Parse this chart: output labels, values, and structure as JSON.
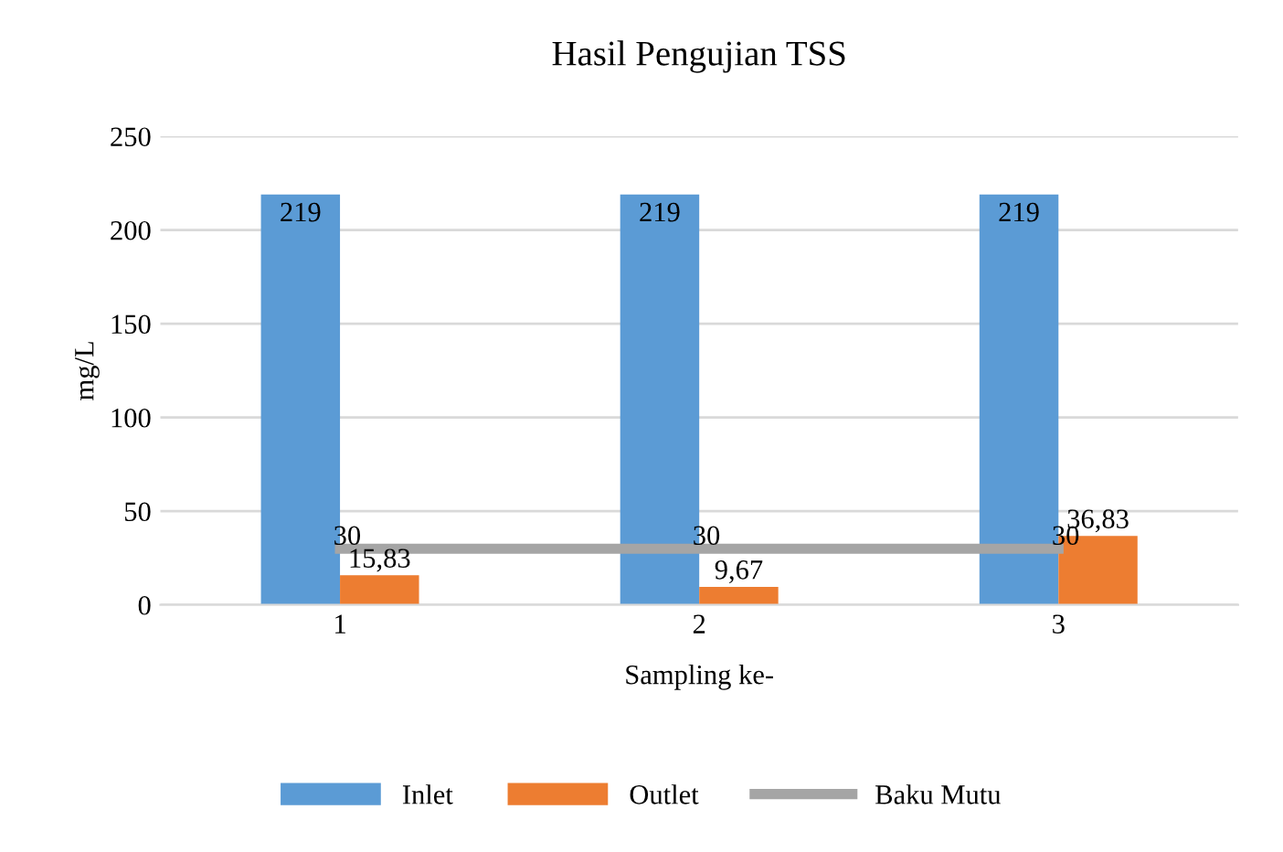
{
  "chart_data": {
    "type": "bar",
    "title": "Hasil Pengujian TSS",
    "xlabel": "Sampling ke-",
    "ylabel": "mg/L",
    "categories": [
      "1",
      "2",
      "3"
    ],
    "series": [
      {
        "name": "Inlet",
        "color": "#5b9bd5",
        "values": [
          219,
          219,
          219
        ],
        "value_labels": [
          "219",
          "219",
          "219"
        ]
      },
      {
        "name": "Outlet",
        "color": "#ed7d31",
        "values": [
          15.83,
          9.67,
          36.83
        ],
        "value_labels": [
          "15,83",
          "9,67",
          "36,83"
        ]
      },
      {
        "name": "Baku Mutu",
        "type": "line",
        "color": "#a5a5a5",
        "values": [
          30,
          30,
          30
        ],
        "value_labels": [
          "30",
          "30",
          "30"
        ]
      }
    ],
    "ylim": [
      0,
      250
    ],
    "yticks": [
      0,
      50,
      100,
      150,
      200,
      250
    ],
    "grid": "y",
    "legend": "bottom"
  }
}
